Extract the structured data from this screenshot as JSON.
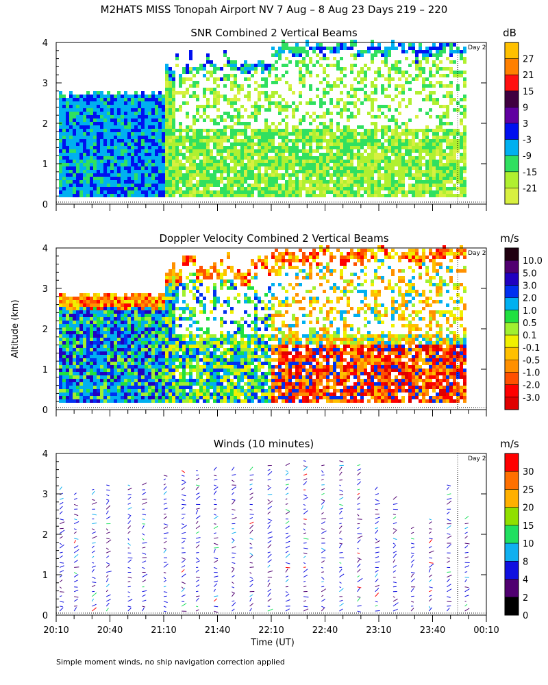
{
  "header": {
    "title": "M2HATS MISS Tonopah Airport NV   7 Aug –  8 Aug 23 Days 219 – 220"
  },
  "footer": {
    "note": "Simple moment winds, no ship navigation correction applied"
  },
  "shared_axes": {
    "ylabel": "Altitude (km)",
    "xlabel": "Time (UT)",
    "x_ticks": [
      "20:10",
      "20:40",
      "21:10",
      "21:40",
      "22:10",
      "22:40",
      "23:10",
      "23:40",
      "00:10"
    ],
    "y_ticks": [
      "0",
      "1",
      "2",
      "3",
      "4"
    ],
    "day_marker_label": "Day 2",
    "day_marker_time": "23:54"
  },
  "chart_data": [
    {
      "type": "heatmap",
      "title": "SNR Combined 2 Vertical Beams",
      "unit": "dB",
      "xlim": [
        "20:10",
        "00:10"
      ],
      "ylim": [
        0,
        4
      ],
      "colorbar": {
        "labels": [
          "27",
          "21",
          "15",
          "9",
          "3",
          "-3",
          "-9",
          "-15",
          "-21"
        ],
        "colors": [
          "#ffc000",
          "#ff8000",
          "#ff1010",
          "#400040",
          "#6000a0",
          "#0010f0",
          "#00b0f0",
          "#30e060",
          "#b0f030",
          "#d8f040"
        ]
      },
      "profile_summary": [
        {
          "period": "20:10-21:10",
          "top_km": 2.7,
          "dominant": "-3 to -9"
        },
        {
          "period": "21:10-22:10",
          "top_km": 3.7,
          "dominant": "-15 to -21"
        },
        {
          "period": "22:10-23:55",
          "top_km": 4.0,
          "dominant": "-15 to -21"
        }
      ]
    },
    {
      "type": "heatmap",
      "title": "Doppler Velocity Combined 2 Vertical Beams",
      "unit": "m/s",
      "xlim": [
        "20:10",
        "00:10"
      ],
      "ylim": [
        0,
        4
      ],
      "colorbar": {
        "labels": [
          "10.0",
          "5.0",
          "3.0",
          "2.0",
          "1.0",
          "0.5",
          "0.1",
          "-0.1",
          "-0.5",
          "-1.0",
          "-2.0",
          "-3.0"
        ],
        "colors": [
          "#200010",
          "#500070",
          "#2000c0",
          "#0030f0",
          "#00b0f0",
          "#20e040",
          "#a0f030",
          "#f0f000",
          "#ffc000",
          "#ff9000",
          "#ff5000",
          "#ff0000",
          "#e00000"
        ]
      },
      "profile_summary": [
        {
          "period": "20:10-21:10",
          "top_km": 2.8,
          "dominant": "1.0 to 2.0"
        },
        {
          "period": "21:10-22:10",
          "top_km": 3.7,
          "dominant": "-1.0 to 1.0"
        },
        {
          "period": "22:10-23:55",
          "top_km": 4.0,
          "dominant": "-3.0 to -0.5"
        }
      ]
    },
    {
      "type": "scatter",
      "title": "Winds (10 minutes)",
      "unit": "m/s",
      "xlim": [
        "20:10",
        "00:10"
      ],
      "ylim": [
        0,
        4
      ],
      "colorbar": {
        "labels": [
          "30",
          "25",
          "20",
          "15",
          "10",
          "8",
          "4",
          "2",
          "0"
        ],
        "colors": [
          "#ff0000",
          "#ff7000",
          "#ffb000",
          "#90e000",
          "#20e060",
          "#10b0f0",
          "#1010e0",
          "#500070",
          "#000000"
        ]
      },
      "profile_times": [
        "20:12",
        "20:20",
        "20:30",
        "20:38",
        "20:50",
        "20:58",
        "21:10",
        "21:20",
        "21:28",
        "21:38",
        "21:48",
        "21:58",
        "22:08",
        "22:18",
        "22:28",
        "22:38",
        "22:48",
        "22:58",
        "23:08",
        "23:18",
        "23:28",
        "23:38",
        "23:48",
        "23:58"
      ],
      "profile_tops_km": [
        3.2,
        3.1,
        3.2,
        3.3,
        3.3,
        3.3,
        3.5,
        3.6,
        3.6,
        3.7,
        3.7,
        3.6,
        3.8,
        3.8,
        3.9,
        3.8,
        3.9,
        3.8,
        3.2,
        2.9,
        2.2,
        2.4,
        3.3,
        2.5
      ],
      "dominant_speed_range": "2 to 8"
    }
  ]
}
